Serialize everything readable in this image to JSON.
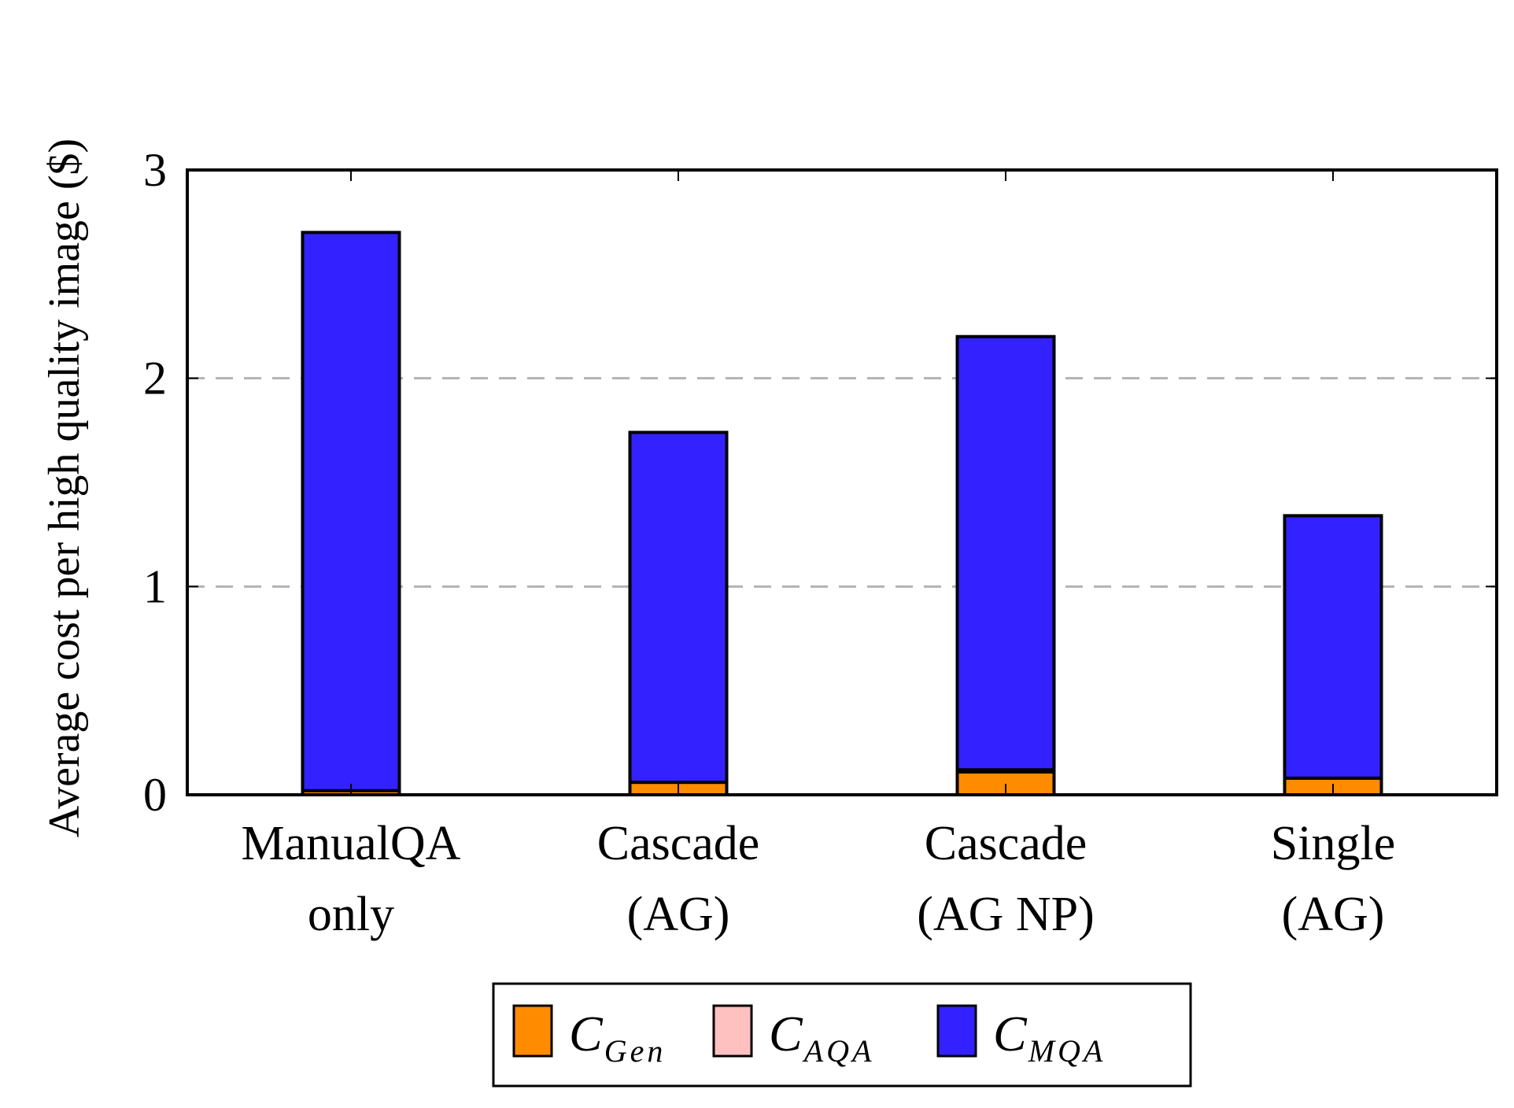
{
  "chart_data": {
    "type": "bar",
    "stacked": true,
    "title": "",
    "xlabel": "",
    "ylabel": "Average cost per high quality image ($)",
    "ylim": [
      0,
      3
    ],
    "yticks": [
      0,
      1,
      2,
      3
    ],
    "grid": "horizontal-dashed",
    "categories": [
      [
        "ManualQA",
        "only"
      ],
      [
        "Cascade",
        "(AG)"
      ],
      [
        "Cascade",
        "(AG NP)"
      ],
      [
        "Single",
        "(AG)"
      ]
    ],
    "series": [
      {
        "name": "C",
        "subscript": "Gen",
        "color": "#ff8c00",
        "values": [
          0.02,
          0.06,
          0.11,
          0.08
        ]
      },
      {
        "name": "C",
        "subscript": "AQA",
        "color": "#ffc0c0",
        "values": [
          0.0,
          0.0,
          0.01,
          0.0
        ]
      },
      {
        "name": "C",
        "subscript": "MQA",
        "color": "#3322ff",
        "values": [
          2.68,
          1.68,
          2.08,
          1.26
        ]
      }
    ],
    "legend_position": "bottom-center"
  }
}
